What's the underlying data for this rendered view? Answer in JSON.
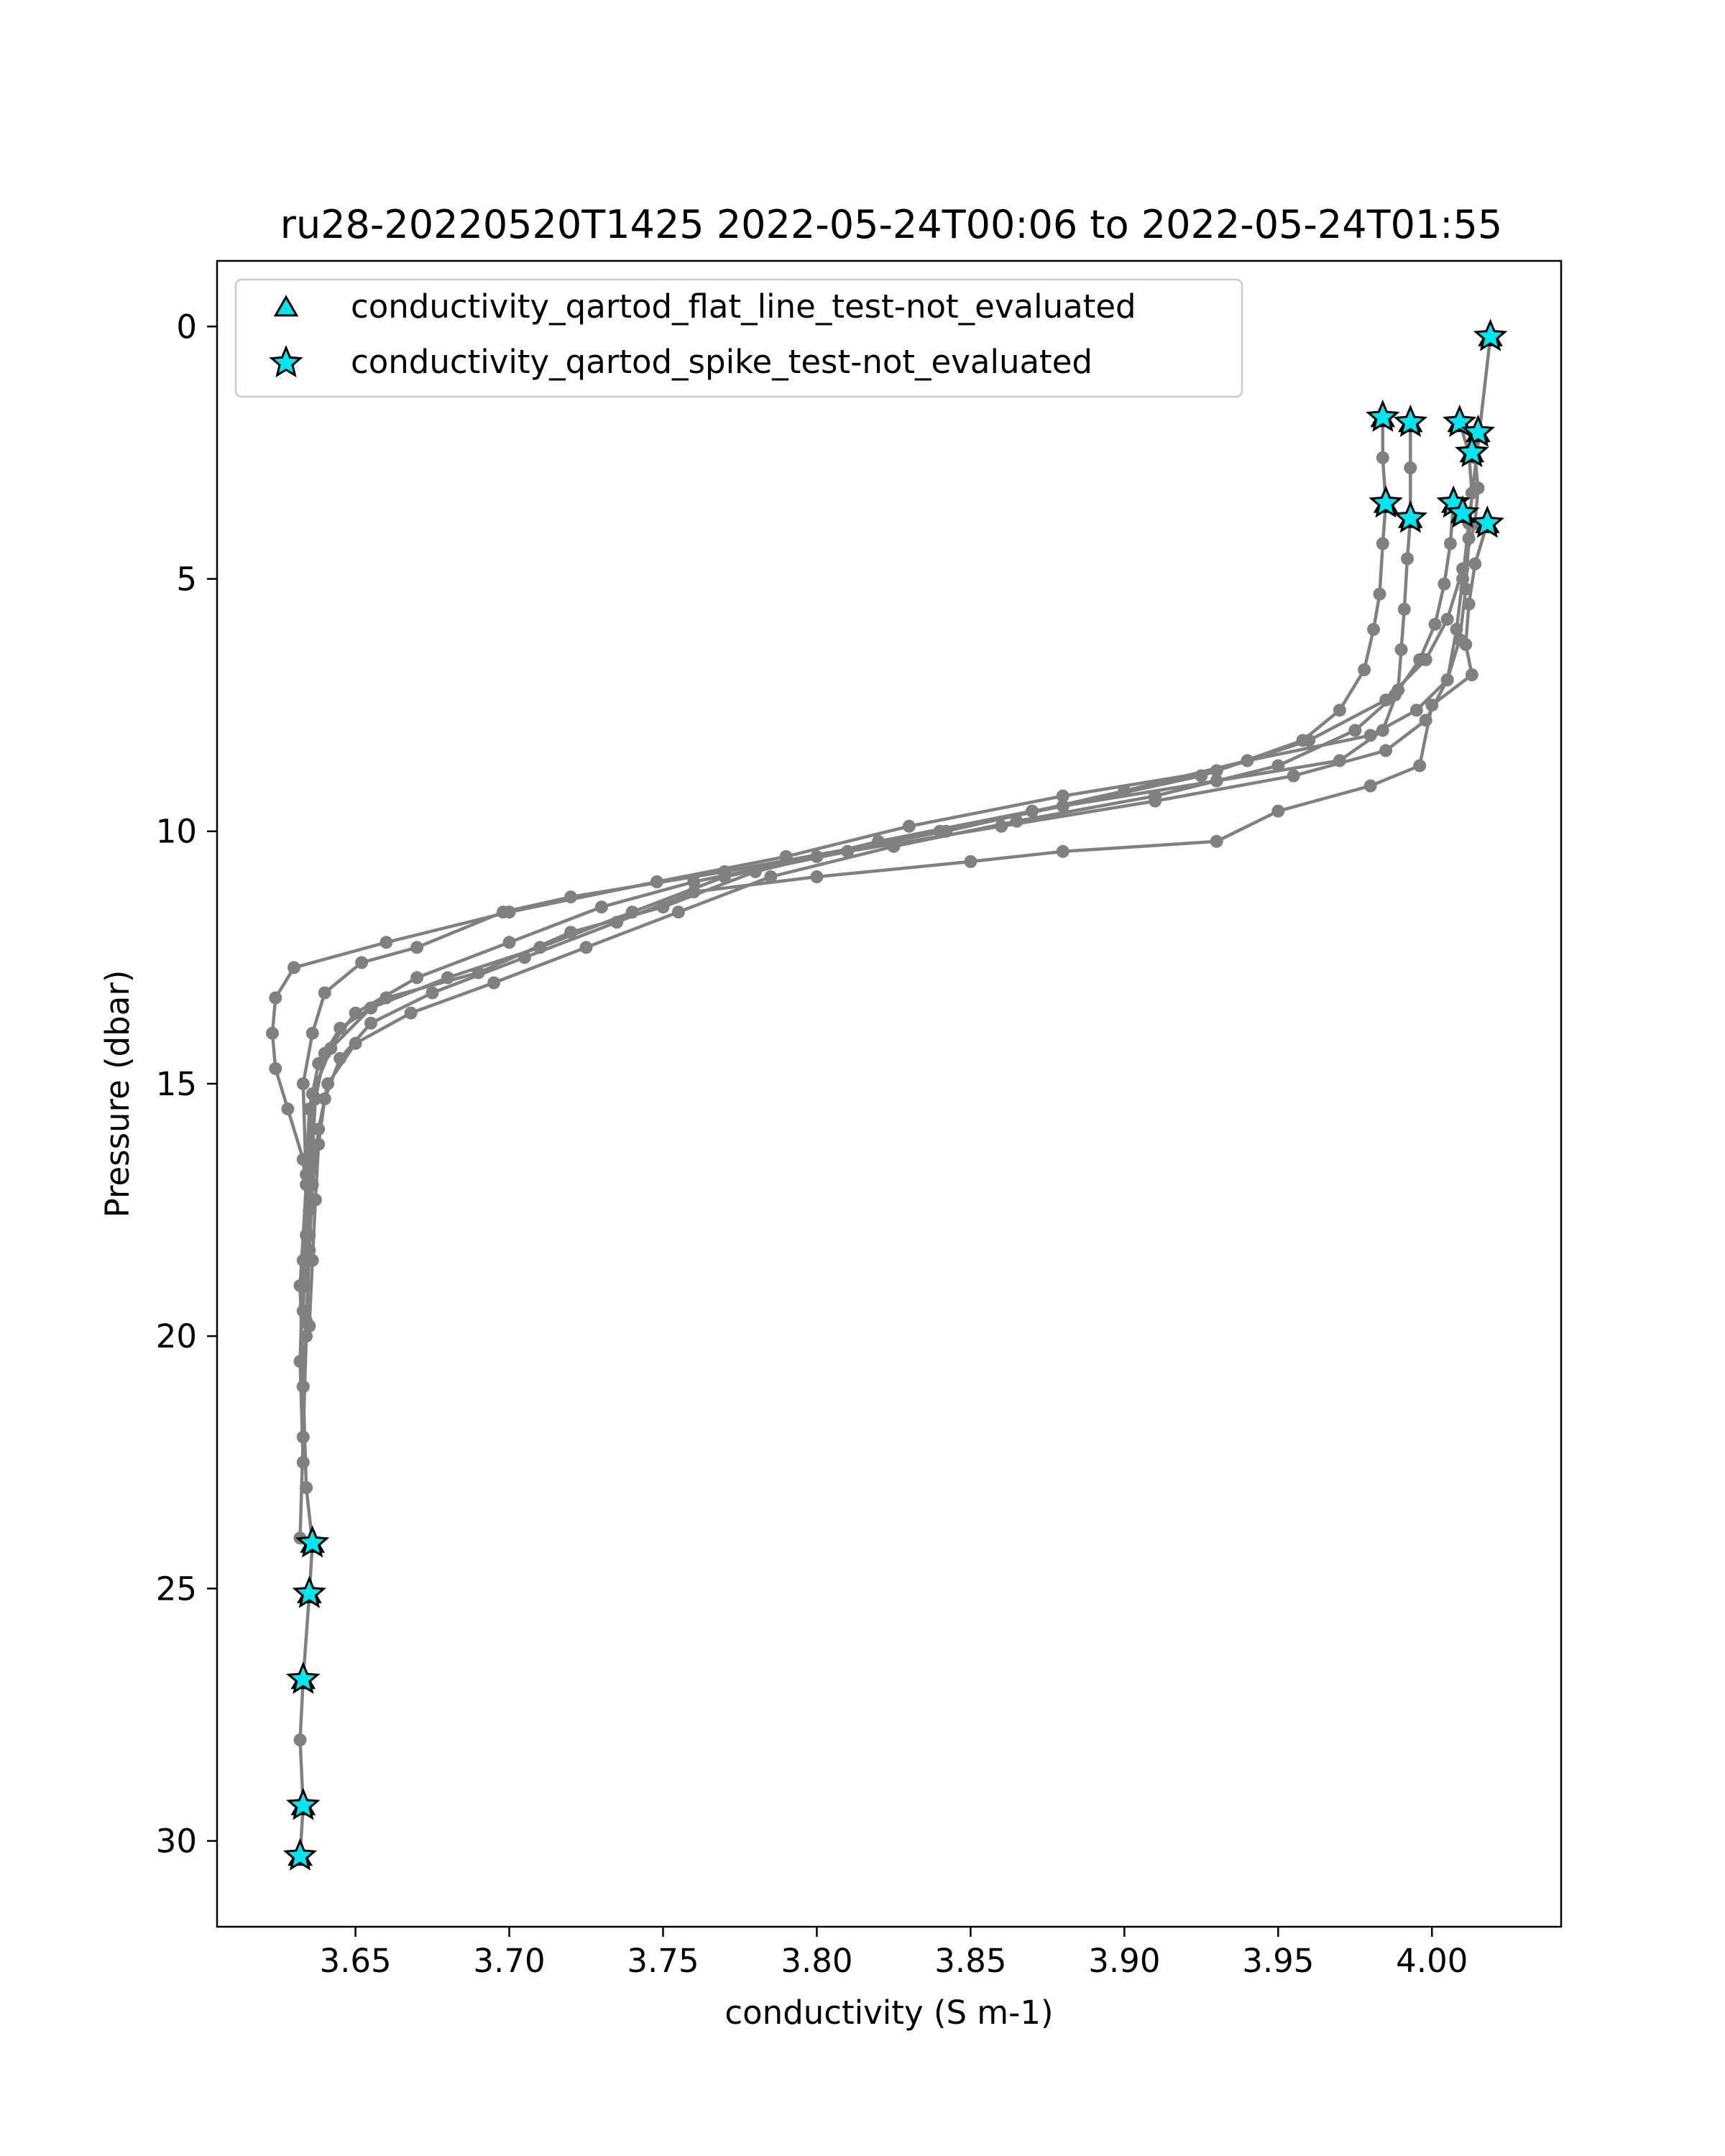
{
  "chart_data": {
    "type": "scatter",
    "title": "ru28-20220520T1425 2022-05-24T00:06 to 2022-05-24T01:55",
    "xlabel": "conductivity (S m-1)",
    "ylabel": "Pressure (dbar)",
    "xlim": [
      3.605,
      4.042
    ],
    "ylim": [
      31.7,
      -1.3
    ],
    "y_inverted": true,
    "grid": false,
    "legend_position": "top-left",
    "xticks": [
      3.65,
      3.7,
      3.75,
      3.8,
      3.85,
      3.9,
      3.95,
      4.0
    ],
    "xtick_labels": [
      "3.65",
      "3.70",
      "3.75",
      "3.80",
      "3.85",
      "3.90",
      "3.95",
      "4.00"
    ],
    "yticks": [
      0,
      5,
      10,
      15,
      20,
      25,
      30
    ],
    "ytick_labels": [
      "0",
      "5",
      "10",
      "15",
      "20",
      "25",
      "30"
    ],
    "colors": {
      "profile_line": "#808080",
      "flag_marker": "#00e5ee",
      "marker_edge": "#000000"
    },
    "legend": [
      {
        "label": "conductivity_qartod_flat_line_test-not_evaluated",
        "marker": "triangle"
      },
      {
        "label": "conductivity_qartod_spike_test-not_evaluated",
        "marker": "star"
      }
    ],
    "profiles": [
      {
        "points": [
          [
            4.019,
            0.2
          ],
          [
            4.012,
            3.9
          ],
          [
            4.01,
            5.0
          ],
          [
            4.008,
            6.0
          ],
          [
            4.005,
            7.0
          ],
          [
            3.995,
            7.6
          ],
          [
            3.98,
            8.1
          ],
          [
            3.94,
            8.6
          ],
          [
            3.9,
            9.2
          ],
          [
            3.842,
            10.0
          ],
          [
            3.77,
            10.8
          ],
          [
            3.72,
            11.3
          ],
          [
            3.698,
            11.6
          ],
          [
            3.67,
            12.3
          ],
          [
            3.652,
            12.6
          ],
          [
            3.64,
            13.2
          ],
          [
            3.636,
            14.0
          ],
          [
            3.633,
            15.0
          ],
          [
            3.634,
            17.0
          ],
          [
            3.632,
            19.0
          ],
          [
            3.633,
            21.0
          ],
          [
            3.634,
            23.0
          ],
          [
            3.636,
            24.1
          ],
          [
            3.635,
            25.1
          ],
          [
            3.633,
            26.8
          ],
          [
            3.632,
            28.0
          ],
          [
            3.633,
            29.3
          ],
          [
            3.632,
            30.3
          ]
        ]
      },
      {
        "points": [
          [
            3.984,
            1.8
          ],
          [
            3.984,
            2.6
          ],
          [
            3.985,
            3.5
          ],
          [
            3.984,
            4.3
          ],
          [
            3.983,
            5.3
          ],
          [
            3.981,
            6.0
          ],
          [
            3.978,
            6.8
          ],
          [
            3.97,
            7.6
          ],
          [
            3.958,
            8.2
          ],
          [
            3.93,
            8.8
          ],
          [
            3.88,
            9.3
          ],
          [
            3.83,
            9.9
          ],
          [
            3.79,
            10.5
          ],
          [
            3.748,
            11.0
          ],
          [
            3.7,
            11.6
          ],
          [
            3.66,
            12.2
          ],
          [
            3.63,
            12.7
          ],
          [
            3.624,
            13.3
          ],
          [
            3.623,
            14.0
          ],
          [
            3.624,
            14.7
          ],
          [
            3.628,
            15.5
          ],
          [
            3.633,
            16.5
          ],
          [
            3.635,
            18.0
          ],
          [
            3.634,
            20.0
          ],
          [
            3.633,
            22.0
          ],
          [
            3.632,
            24.0
          ]
        ]
      },
      {
        "points": [
          [
            3.993,
            1.9
          ],
          [
            3.993,
            2.8
          ],
          [
            3.993,
            3.8
          ],
          [
            3.992,
            4.6
          ],
          [
            3.991,
            5.6
          ],
          [
            3.99,
            6.4
          ],
          [
            3.989,
            7.2
          ],
          [
            3.984,
            8.0
          ],
          [
            3.97,
            8.6
          ],
          [
            3.93,
            9.0
          ],
          [
            3.87,
            9.6
          ],
          [
            3.82,
            10.2
          ],
          [
            3.78,
            10.8
          ],
          [
            3.75,
            11.5
          ],
          [
            3.72,
            12.0
          ],
          [
            3.69,
            12.8
          ],
          [
            3.66,
            13.3
          ],
          [
            3.645,
            13.9
          ],
          [
            3.638,
            14.6
          ],
          [
            3.635,
            15.5
          ],
          [
            3.634,
            16.8
          ],
          [
            3.633,
            18.5
          ],
          [
            3.632,
            20.5
          ],
          [
            3.633,
            22.5
          ]
        ]
      },
      {
        "points": [
          [
            4.009,
            1.9
          ],
          [
            4.012,
            2.5
          ],
          [
            4.013,
            3.3
          ],
          [
            4.012,
            4.2
          ],
          [
            4.011,
            5.2
          ],
          [
            4.009,
            6.2
          ],
          [
            4.005,
            7.0
          ],
          [
            3.998,
            7.8
          ],
          [
            3.985,
            8.4
          ],
          [
            3.955,
            8.9
          ],
          [
            3.91,
            9.4
          ],
          [
            3.86,
            9.9
          ],
          [
            3.81,
            10.4
          ],
          [
            3.77,
            10.9
          ],
          [
            3.74,
            11.6
          ],
          [
            3.71,
            12.3
          ],
          [
            3.68,
            12.9
          ],
          [
            3.655,
            13.5
          ],
          [
            3.642,
            14.3
          ],
          [
            3.636,
            15.2
          ],
          [
            3.635,
            16.5
          ],
          [
            3.634,
            18.0
          ],
          [
            3.633,
            19.5
          ]
        ]
      },
      {
        "points": [
          [
            4.015,
            2.1
          ],
          [
            4.014,
            2.6
          ],
          [
            4.015,
            3.2
          ],
          [
            4.014,
            3.9
          ],
          [
            4.01,
            4.8
          ],
          [
            4.005,
            5.8
          ],
          [
            3.998,
            6.6
          ],
          [
            3.985,
            7.4
          ],
          [
            3.96,
            8.2
          ],
          [
            3.925,
            8.9
          ],
          [
            3.88,
            9.5
          ],
          [
            3.84,
            10.0
          ],
          [
            3.8,
            10.5
          ],
          [
            3.76,
            11.0
          ],
          [
            3.73,
            11.5
          ],
          [
            3.7,
            12.2
          ],
          [
            3.67,
            12.9
          ],
          [
            3.65,
            13.6
          ],
          [
            3.64,
            14.4
          ],
          [
            3.637,
            15.3
          ],
          [
            3.636,
            16.3
          ],
          [
            3.635,
            17.5
          ],
          [
            3.634,
            19.0
          ]
        ]
      },
      {
        "points": [
          [
            4.007,
            3.5
          ],
          [
            4.006,
            4.3
          ],
          [
            4.004,
            5.1
          ],
          [
            4.001,
            5.9
          ],
          [
            3.996,
            6.6
          ],
          [
            3.988,
            7.3
          ],
          [
            3.975,
            8.0
          ],
          [
            3.95,
            8.7
          ],
          [
            3.91,
            9.3
          ],
          [
            3.865,
            9.8
          ],
          [
            3.825,
            10.3
          ],
          [
            3.785,
            10.9
          ],
          [
            3.755,
            11.6
          ],
          [
            3.725,
            12.3
          ],
          [
            3.695,
            13.0
          ],
          [
            3.668,
            13.6
          ],
          [
            3.65,
            14.2
          ],
          [
            3.641,
            15.0
          ],
          [
            3.638,
            15.9
          ],
          [
            3.636,
            17.0
          ],
          [
            3.635,
            18.3
          ],
          [
            3.634,
            19.7
          ],
          [
            3.633,
            21.0
          ]
        ]
      },
      {
        "points": [
          [
            4.018,
            3.9
          ],
          [
            4.014,
            4.7
          ],
          [
            4.012,
            5.5
          ],
          [
            4.011,
            6.3
          ],
          [
            4.013,
            6.9
          ],
          [
            4.0,
            7.5
          ],
          [
            3.996,
            8.7
          ],
          [
            3.98,
            9.1
          ],
          [
            3.95,
            9.6
          ],
          [
            3.93,
            10.2
          ],
          [
            3.88,
            10.4
          ],
          [
            3.85,
            10.6
          ],
          [
            3.8,
            10.9
          ],
          [
            3.76,
            11.2
          ],
          [
            3.735,
            11.8
          ],
          [
            3.705,
            12.5
          ],
          [
            3.675,
            13.2
          ],
          [
            3.655,
            13.8
          ],
          [
            3.645,
            14.5
          ],
          [
            3.64,
            15.3
          ],
          [
            3.638,
            16.2
          ],
          [
            3.637,
            17.3
          ],
          [
            3.636,
            18.5
          ],
          [
            3.635,
            19.8
          ]
        ]
      }
    ],
    "spike_test_not_evaluated": [
      [
        4.019,
        0.2
      ],
      [
        3.984,
        1.8
      ],
      [
        3.993,
        1.9
      ],
      [
        4.009,
        1.9
      ],
      [
        4.015,
        2.1
      ],
      [
        4.013,
        2.5
      ],
      [
        3.985,
        3.5
      ],
      [
        4.007,
        3.5
      ],
      [
        4.01,
        3.7
      ],
      [
        3.993,
        3.8
      ],
      [
        4.018,
        3.9
      ],
      [
        3.636,
        24.1
      ],
      [
        3.635,
        25.1
      ],
      [
        3.633,
        26.8
      ],
      [
        3.633,
        29.3
      ],
      [
        3.632,
        30.3
      ]
    ],
    "flat_line_test_not_evaluated": [
      [
        4.019,
        0.2
      ],
      [
        3.984,
        1.8
      ],
      [
        3.993,
        1.9
      ],
      [
        4.009,
        1.9
      ],
      [
        4.015,
        2.1
      ],
      [
        4.013,
        2.5
      ],
      [
        3.985,
        3.5
      ],
      [
        4.007,
        3.5
      ],
      [
        4.01,
        3.7
      ],
      [
        3.993,
        3.8
      ],
      [
        4.018,
        3.9
      ],
      [
        3.636,
        24.1
      ],
      [
        3.635,
        25.1
      ],
      [
        3.633,
        26.8
      ],
      [
        3.633,
        29.3
      ],
      [
        3.632,
        30.3
      ]
    ]
  }
}
